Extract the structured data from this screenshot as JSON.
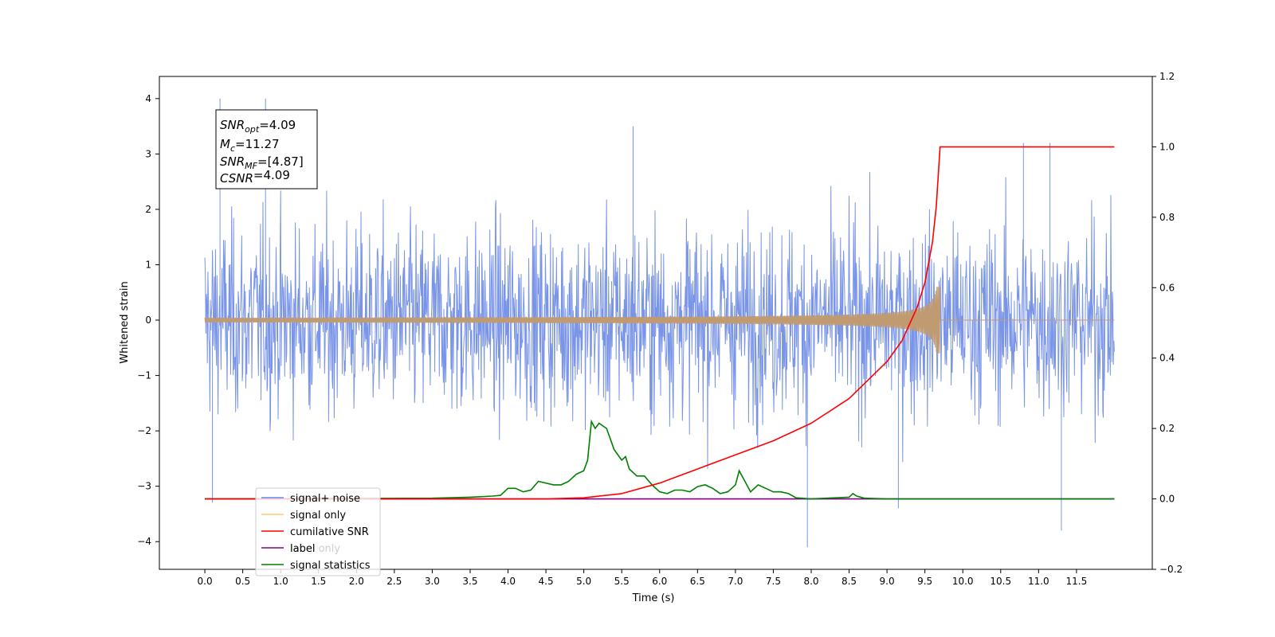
{
  "chart_data": {
    "type": "line",
    "xlabel": "Time (s)",
    "ylabel": "Whitened strain",
    "xlim": [
      -0.6,
      12.5
    ],
    "ylim": [
      -4.5,
      4.4
    ],
    "y2lim": [
      -0.2,
      1.2
    ],
    "x_ticks": [
      0.0,
      0.5,
      1.0,
      1.5,
      2.0,
      2.5,
      3.0,
      3.5,
      4.0,
      4.5,
      5.0,
      5.5,
      6.0,
      6.5,
      7.0,
      7.5,
      8.0,
      8.5,
      9.0,
      9.5,
      10.0,
      10.5,
      11.0,
      11.5
    ],
    "x_tick_labels": [
      "0.0",
      "0.5",
      "1.0",
      "1.5",
      "2.0",
      "2.5",
      "3.0",
      "3.5",
      "4.0",
      "4.5",
      "5.0",
      "5.5",
      "6.0",
      "6.5",
      "7.0",
      "7.5",
      "8.0",
      "8.5",
      "9.0",
      "9.5",
      "10.0",
      "10.5",
      "11.0",
      "11.5"
    ],
    "y_ticks": [
      -4,
      -3,
      -2,
      -1,
      0,
      1,
      2,
      3,
      4
    ],
    "y_tick_labels": [
      "−4",
      "−3",
      "−2",
      "−1",
      "0",
      "1",
      "2",
      "3",
      "4"
    ],
    "y2_ticks": [
      -0.2,
      0.0,
      0.2,
      0.4,
      0.6,
      0.8,
      1.0,
      1.2
    ],
    "y2_tick_labels": [
      "−0.2",
      "0.0",
      "0.2",
      "0.4",
      "0.6",
      "0.8",
      "1.0",
      "1.2"
    ],
    "legend_placement": "lower-left",
    "grid": false,
    "series": [
      {
        "name": "signal+ noise",
        "color": "#6b89e6",
        "axis": "left",
        "style": "noise band",
        "x_range": [
          0.0,
          12.0
        ],
        "typical_amplitude": [
          -2.0,
          2.0
        ],
        "extremes": [
          {
            "x": 0.2,
            "y": 4.0
          },
          {
            "x": 0.8,
            "y": 4.0
          },
          {
            "x": 5.65,
            "y": 3.5
          },
          {
            "x": 7.95,
            "y": -4.1
          },
          {
            "x": 11.3,
            "y": -3.8
          },
          {
            "x": 9.15,
            "y": -3.4
          },
          {
            "x": 0.1,
            "y": -3.3
          },
          {
            "x": 11.15,
            "y": 3.2
          },
          {
            "x": 10.8,
            "y": 3.2
          }
        ]
      },
      {
        "name": "signal only",
        "color": "#c09a70",
        "axis": "left",
        "style": "chirp",
        "x_range": [
          0.0,
          12.0
        ],
        "merger_time": 9.7,
        "peak_amplitude": 0.6
      },
      {
        "name": "cumilative SNR",
        "color": "#ff0000",
        "axis": "right",
        "x": [
          0.0,
          4.5,
          5.0,
          5.5,
          6.0,
          6.5,
          7.0,
          7.5,
          8.0,
          8.5,
          9.0,
          9.2,
          9.4,
          9.5,
          9.6,
          9.65,
          9.7,
          12.0
        ],
        "values": [
          0.0,
          0.0,
          0.003,
          0.015,
          0.045,
          0.085,
          0.125,
          0.165,
          0.215,
          0.285,
          0.39,
          0.45,
          0.545,
          0.615,
          0.73,
          0.83,
          1.0,
          1.0
        ]
      },
      {
        "name": "label",
        "color": "#800080",
        "axis": "right",
        "x": [
          0.0,
          12.0
        ],
        "values": [
          0.0,
          0.0
        ]
      },
      {
        "name": "label only",
        "color": "#ffffff",
        "axis": "right",
        "x": [],
        "values": []
      },
      {
        "name": "signal statistics",
        "color": "#008000",
        "axis": "right",
        "x": [
          0.0,
          3.0,
          3.5,
          3.8,
          3.9,
          4.0,
          4.1,
          4.2,
          4.3,
          4.4,
          4.6,
          4.7,
          4.8,
          4.9,
          5.0,
          5.05,
          5.1,
          5.15,
          5.2,
          5.3,
          5.4,
          5.5,
          5.55,
          5.6,
          5.7,
          5.8,
          5.9,
          6.0,
          6.1,
          6.2,
          6.3,
          6.4,
          6.5,
          6.6,
          6.7,
          6.8,
          6.9,
          7.0,
          7.05,
          7.1,
          7.2,
          7.3,
          7.4,
          7.5,
          7.6,
          7.7,
          7.8,
          8.0,
          8.2,
          8.5,
          8.55,
          8.6,
          8.7,
          9.0,
          12.0
        ],
        "values": [
          0.0,
          0.002,
          0.005,
          0.008,
          0.01,
          0.03,
          0.03,
          0.02,
          0.025,
          0.05,
          0.04,
          0.04,
          0.05,
          0.07,
          0.08,
          0.11,
          0.22,
          0.2,
          0.215,
          0.2,
          0.14,
          0.11,
          0.12,
          0.085,
          0.065,
          0.065,
          0.04,
          0.02,
          0.015,
          0.025,
          0.025,
          0.02,
          0.035,
          0.04,
          0.03,
          0.015,
          0.02,
          0.04,
          0.08,
          0.06,
          0.02,
          0.04,
          0.03,
          0.02,
          0.02,
          0.015,
          0.003,
          0.0,
          0.002,
          0.005,
          0.015,
          0.008,
          0.002,
          0.0,
          0.0
        ]
      }
    ],
    "annotation": {
      "lines": [
        {
          "base": "SNR",
          "sub": "opt",
          "rest": "=4.09"
        },
        {
          "base": "M",
          "sub": "c",
          "rest": "=11.27"
        },
        {
          "base": "SNR",
          "sub": "MF",
          "rest": "=[4.87]"
        },
        {
          "base": "CSNR",
          "sub": "",
          "rest": "=4.09"
        }
      ]
    }
  }
}
